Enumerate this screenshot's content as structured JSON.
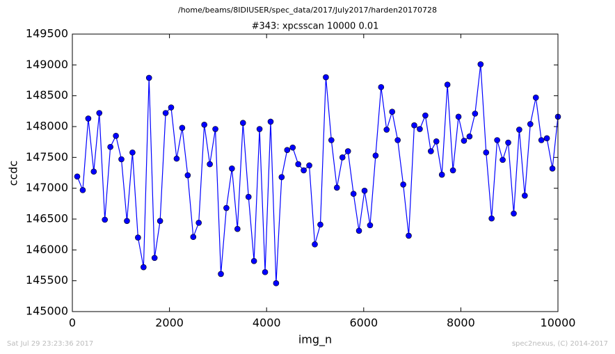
{
  "chart_data": {
    "type": "line",
    "suptitle": "/home/beams/8IDIUSER/spec_data/2017/July2017/harden20170728",
    "title": "#343: xpcsscan 10000 0.01",
    "xlabel": "img_n",
    "ylabel": "ccdc",
    "footer_left": "Sat Jul 29 23:23:36 2017",
    "footer_right": "spec2nexus, (C) 2014-2017",
    "x": [
      100,
      214,
      328,
      441,
      555,
      669,
      783,
      897,
      1010,
      1124,
      1238,
      1352,
      1466,
      1579,
      1693,
      1807,
      1921,
      2034,
      2148,
      2262,
      2376,
      2490,
      2603,
      2717,
      2831,
      2945,
      3059,
      3172,
      3286,
      3400,
      3514,
      3628,
      3741,
      3855,
      3969,
      4083,
      4196,
      4310,
      4424,
      4538,
      4652,
      4765,
      4879,
      4993,
      5107,
      5221,
      5334,
      5448,
      5562,
      5676,
      5790,
      5903,
      6017,
      6131,
      6245,
      6358,
      6472,
      6586,
      6700,
      6814,
      6927,
      7041,
      7155,
      7269,
      7383,
      7496,
      7610,
      7724,
      7838,
      7952,
      8065,
      8179,
      8293,
      8407,
      8521,
      8634,
      8748,
      8862,
      8976,
      9090,
      9203,
      9317,
      9431,
      9545,
      9659,
      9772,
      9886,
      10000
    ],
    "series": [
      {
        "name": "ccdc",
        "color": "#0000ff",
        "marker_color": "#0000ff",
        "values": [
          147190,
          146970,
          148130,
          147270,
          148220,
          146490,
          147670,
          147850,
          147470,
          146470,
          147580,
          146200,
          145720,
          148790,
          145870,
          146470,
          148220,
          148310,
          147480,
          147980,
          147210,
          146210,
          146440,
          148030,
          147390,
          147960,
          145610,
          146680,
          147320,
          146340,
          148060,
          146860,
          145820,
          147960,
          145640,
          148080,
          145460,
          147180,
          147620,
          147660,
          147390,
          147290,
          147370,
          146090,
          146410,
          148800,
          147780,
          147010,
          147500,
          147600,
          146910,
          146310,
          146960,
          146400,
          147530,
          148640,
          147950,
          148240,
          147780,
          147060,
          146230,
          148020,
          147960,
          148180,
          147600,
          147760,
          147220,
          148680,
          147290,
          148160,
          147770,
          147840,
          148210,
          149010,
          147580,
          146510,
          147780,
          147460,
          147740,
          146590,
          147950,
          146880,
          148040,
          148470,
          147780,
          147810,
          147320,
          148160
        ]
      }
    ],
    "xlim": [
      0,
      10000
    ],
    "xticks": [
      0,
      2000,
      4000,
      6000,
      8000,
      10000
    ],
    "ylim": [
      145000,
      149500
    ],
    "yticks": [
      145000,
      145500,
      146000,
      146500,
      147000,
      147500,
      148000,
      148500,
      149000,
      149500
    ]
  }
}
